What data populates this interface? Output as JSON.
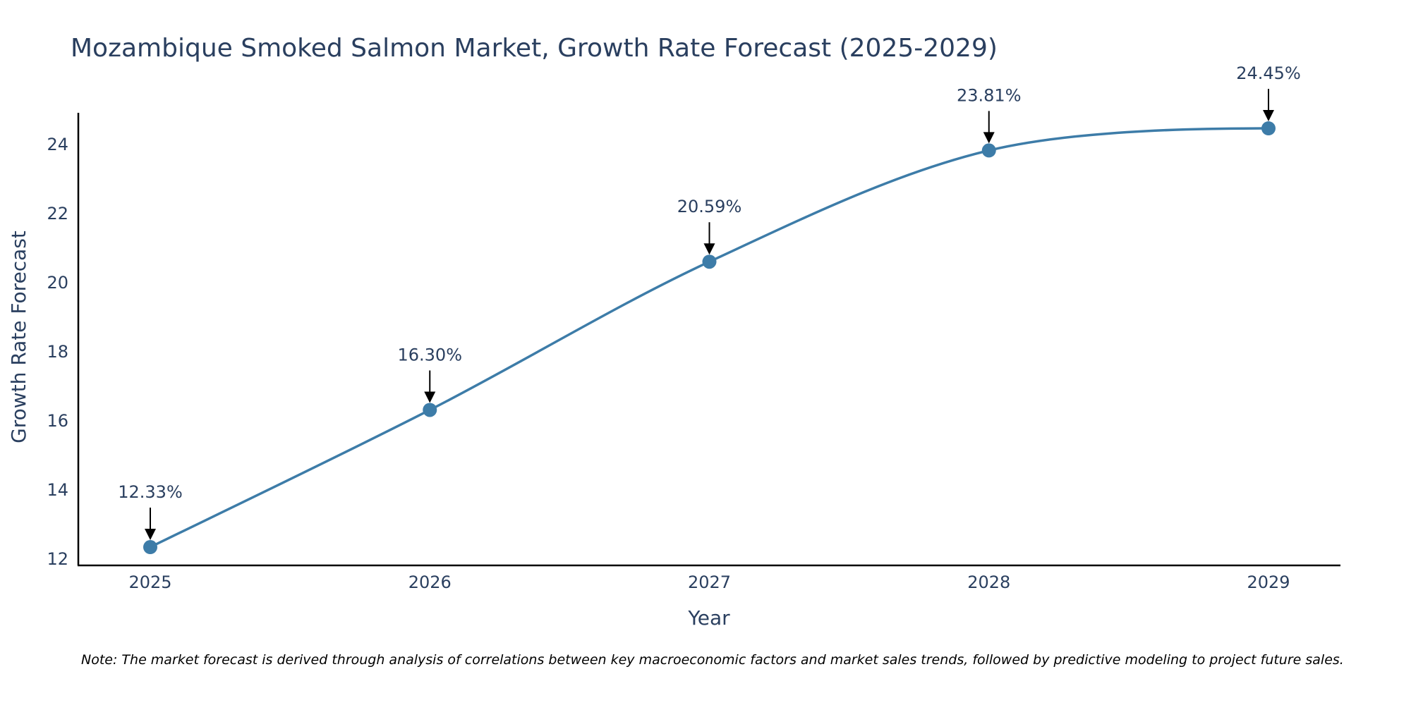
{
  "chart_data": {
    "type": "line",
    "title": "Mozambique Smoked Salmon Market, Growth Rate Forecast (2025-2029)",
    "xlabel": "Year",
    "ylabel": "Growth Rate Forecast",
    "x": [
      "2025",
      "2026",
      "2027",
      "2028",
      "2029"
    ],
    "series": [
      {
        "name": "Growth Rate Forecast",
        "values": [
          12.33,
          16.3,
          20.59,
          23.81,
          24.45
        ],
        "labels": [
          "12.33%",
          "16.30%",
          "20.59%",
          "23.81%",
          "24.45%"
        ]
      }
    ],
    "yticks": [
      12,
      14,
      16,
      18,
      20,
      22,
      24
    ],
    "ylim": [
      11.8,
      24.9
    ],
    "grid": false,
    "line_color": "#3d7ca8",
    "marker_color": "#3d7ca8",
    "arrow_color": "#000000"
  },
  "note": "Note: The market forecast is derived through analysis of correlations between key macroeconomic factors and market sales trends, followed by predictive modeling to project future sales."
}
